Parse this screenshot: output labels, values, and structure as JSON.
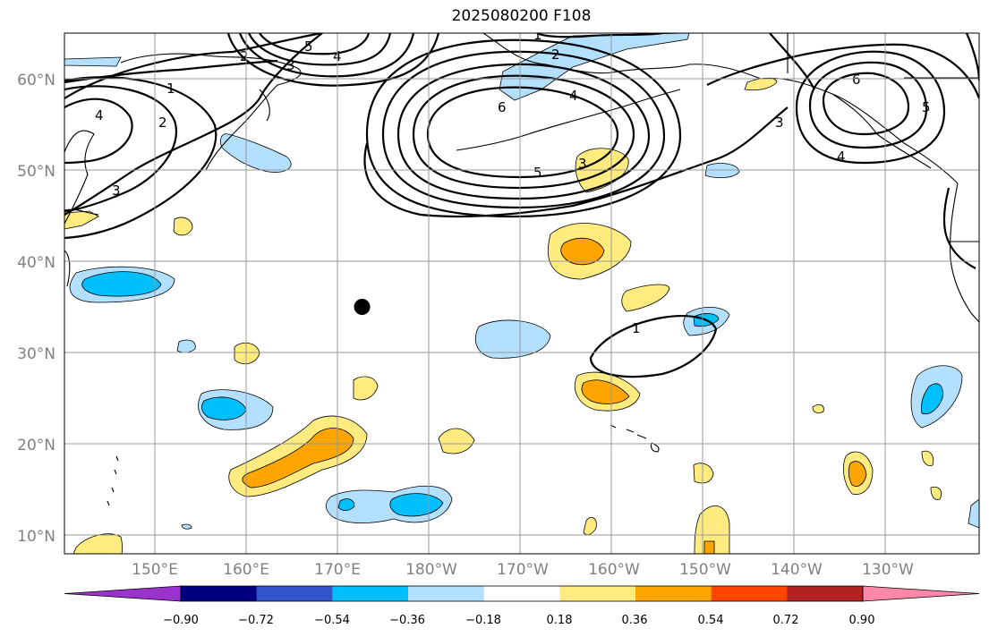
{
  "title": "2025080200 F108",
  "colors": {
    "cb_fills": [
      "#9933cc",
      "#000080",
      "#3355cc",
      "#00bfff",
      "#b3e0ff",
      "#ffffff",
      "#ffeb80",
      "#ffa500",
      "#ff4500",
      "#b22222",
      "#ff88aa"
    ]
  },
  "map": {
    "lon_labels": [
      "150°E",
      "160°E",
      "170°E",
      "180°W",
      "170°W",
      "160°W",
      "150°W",
      "140°W",
      "130°W"
    ],
    "lat_labels": [
      "60°N",
      "50°N",
      "40°N",
      "30°N",
      "20°N",
      "10°N"
    ],
    "marker": {
      "lon": 172.7,
      "lat": 35.0
    },
    "contour_labels": [
      "1",
      "2",
      "3",
      "4",
      "5",
      "6"
    ]
  },
  "colorbar": {
    "labels": [
      "−0.90",
      "−0.72",
      "−0.54",
      "−0.36",
      "−0.18",
      "0.18",
      "0.36",
      "0.54",
      "0.72",
      "0.90"
    ]
  }
}
